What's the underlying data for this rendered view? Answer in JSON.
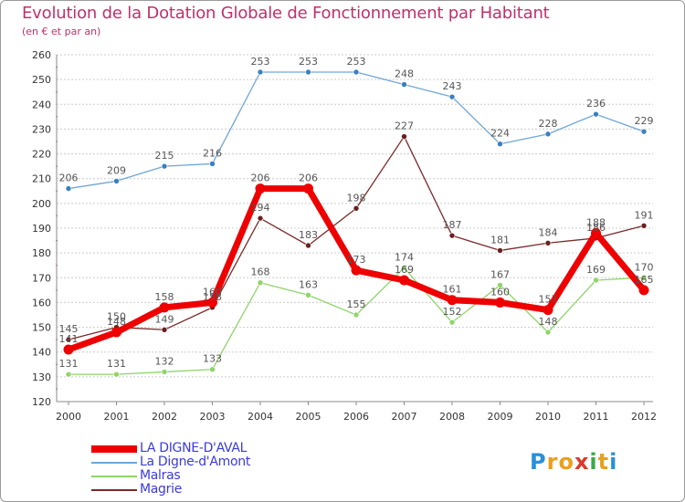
{
  "header": {
    "title": "Evolution de la Dotation Globale de Fonctionnement par Habitant",
    "subtitle": "(en € et par an)"
  },
  "chart_data": {
    "type": "line",
    "title": "Evolution de la Dotation Globale de Fonctionnement par Habitant",
    "subtitle": "(en € et par an)",
    "xlabel": "",
    "ylabel": "",
    "ylim": [
      120,
      260
    ],
    "ytick_step": 10,
    "grid": "horizontal",
    "x": [
      "2000",
      "2001",
      "2002",
      "2003",
      "2004",
      "2005",
      "2006",
      "2007",
      "2008",
      "2009",
      "2010",
      "2011",
      "2012"
    ],
    "series": [
      {
        "name": "LA DIGNE-D'AVAL",
        "color": "#ee0000",
        "values": [
          141,
          148,
          158,
          160,
          206,
          206,
          173,
          169,
          161,
          160,
          157,
          188,
          165
        ]
      },
      {
        "name": "La Digne-d'Amont",
        "color": "#6fa6d6",
        "values": [
          206,
          209,
          215,
          216,
          253,
          253,
          253,
          248,
          243,
          224,
          228,
          236,
          229
        ]
      },
      {
        "name": "Malras",
        "color": "#8fd46a",
        "values": [
          131,
          131,
          132,
          133,
          168,
          163,
          155,
          174,
          152,
          167,
          148,
          169,
          170
        ]
      },
      {
        "name": "Magrie",
        "color": "#7a2a2a",
        "values": [
          145,
          150,
          149,
          158,
          194,
          183,
          198,
          227,
          187,
          181,
          184,
          186,
          191
        ]
      }
    ],
    "data_labels": [
      [
        "141",
        "148",
        "158",
        "160",
        "206",
        "206",
        "173",
        "169",
        "161",
        "160",
        "157",
        "188",
        "165"
      ],
      [
        "206",
        "209",
        "215",
        "216",
        "253",
        "253",
        "253",
        "248",
        "243",
        "224",
        "228",
        "236",
        "229"
      ],
      [
        "131",
        "131",
        "132",
        "133",
        "168",
        "163",
        "155",
        "174",
        "152",
        "167",
        "148",
        "169",
        "170"
      ],
      [
        "145",
        "150",
        "149",
        "158",
        "194",
        "183",
        "198",
        "227",
        "187",
        "181",
        "184",
        "186",
        "191"
      ]
    ],
    "legend": "bottom-left"
  },
  "legend": {
    "items": [
      "LA DIGNE-D'AVAL",
      "La Digne-d'Amont",
      "Malras",
      "Magrie"
    ]
  },
  "logo": {
    "letters": [
      "P",
      "r",
      "o",
      "x",
      "i",
      "t",
      "i"
    ],
    "colors": [
      "#2a8fd8",
      "#e8a020",
      "#e8a020",
      "#d83a2a",
      "#3aa84a",
      "#e8a020",
      "#2a8fd8"
    ]
  }
}
